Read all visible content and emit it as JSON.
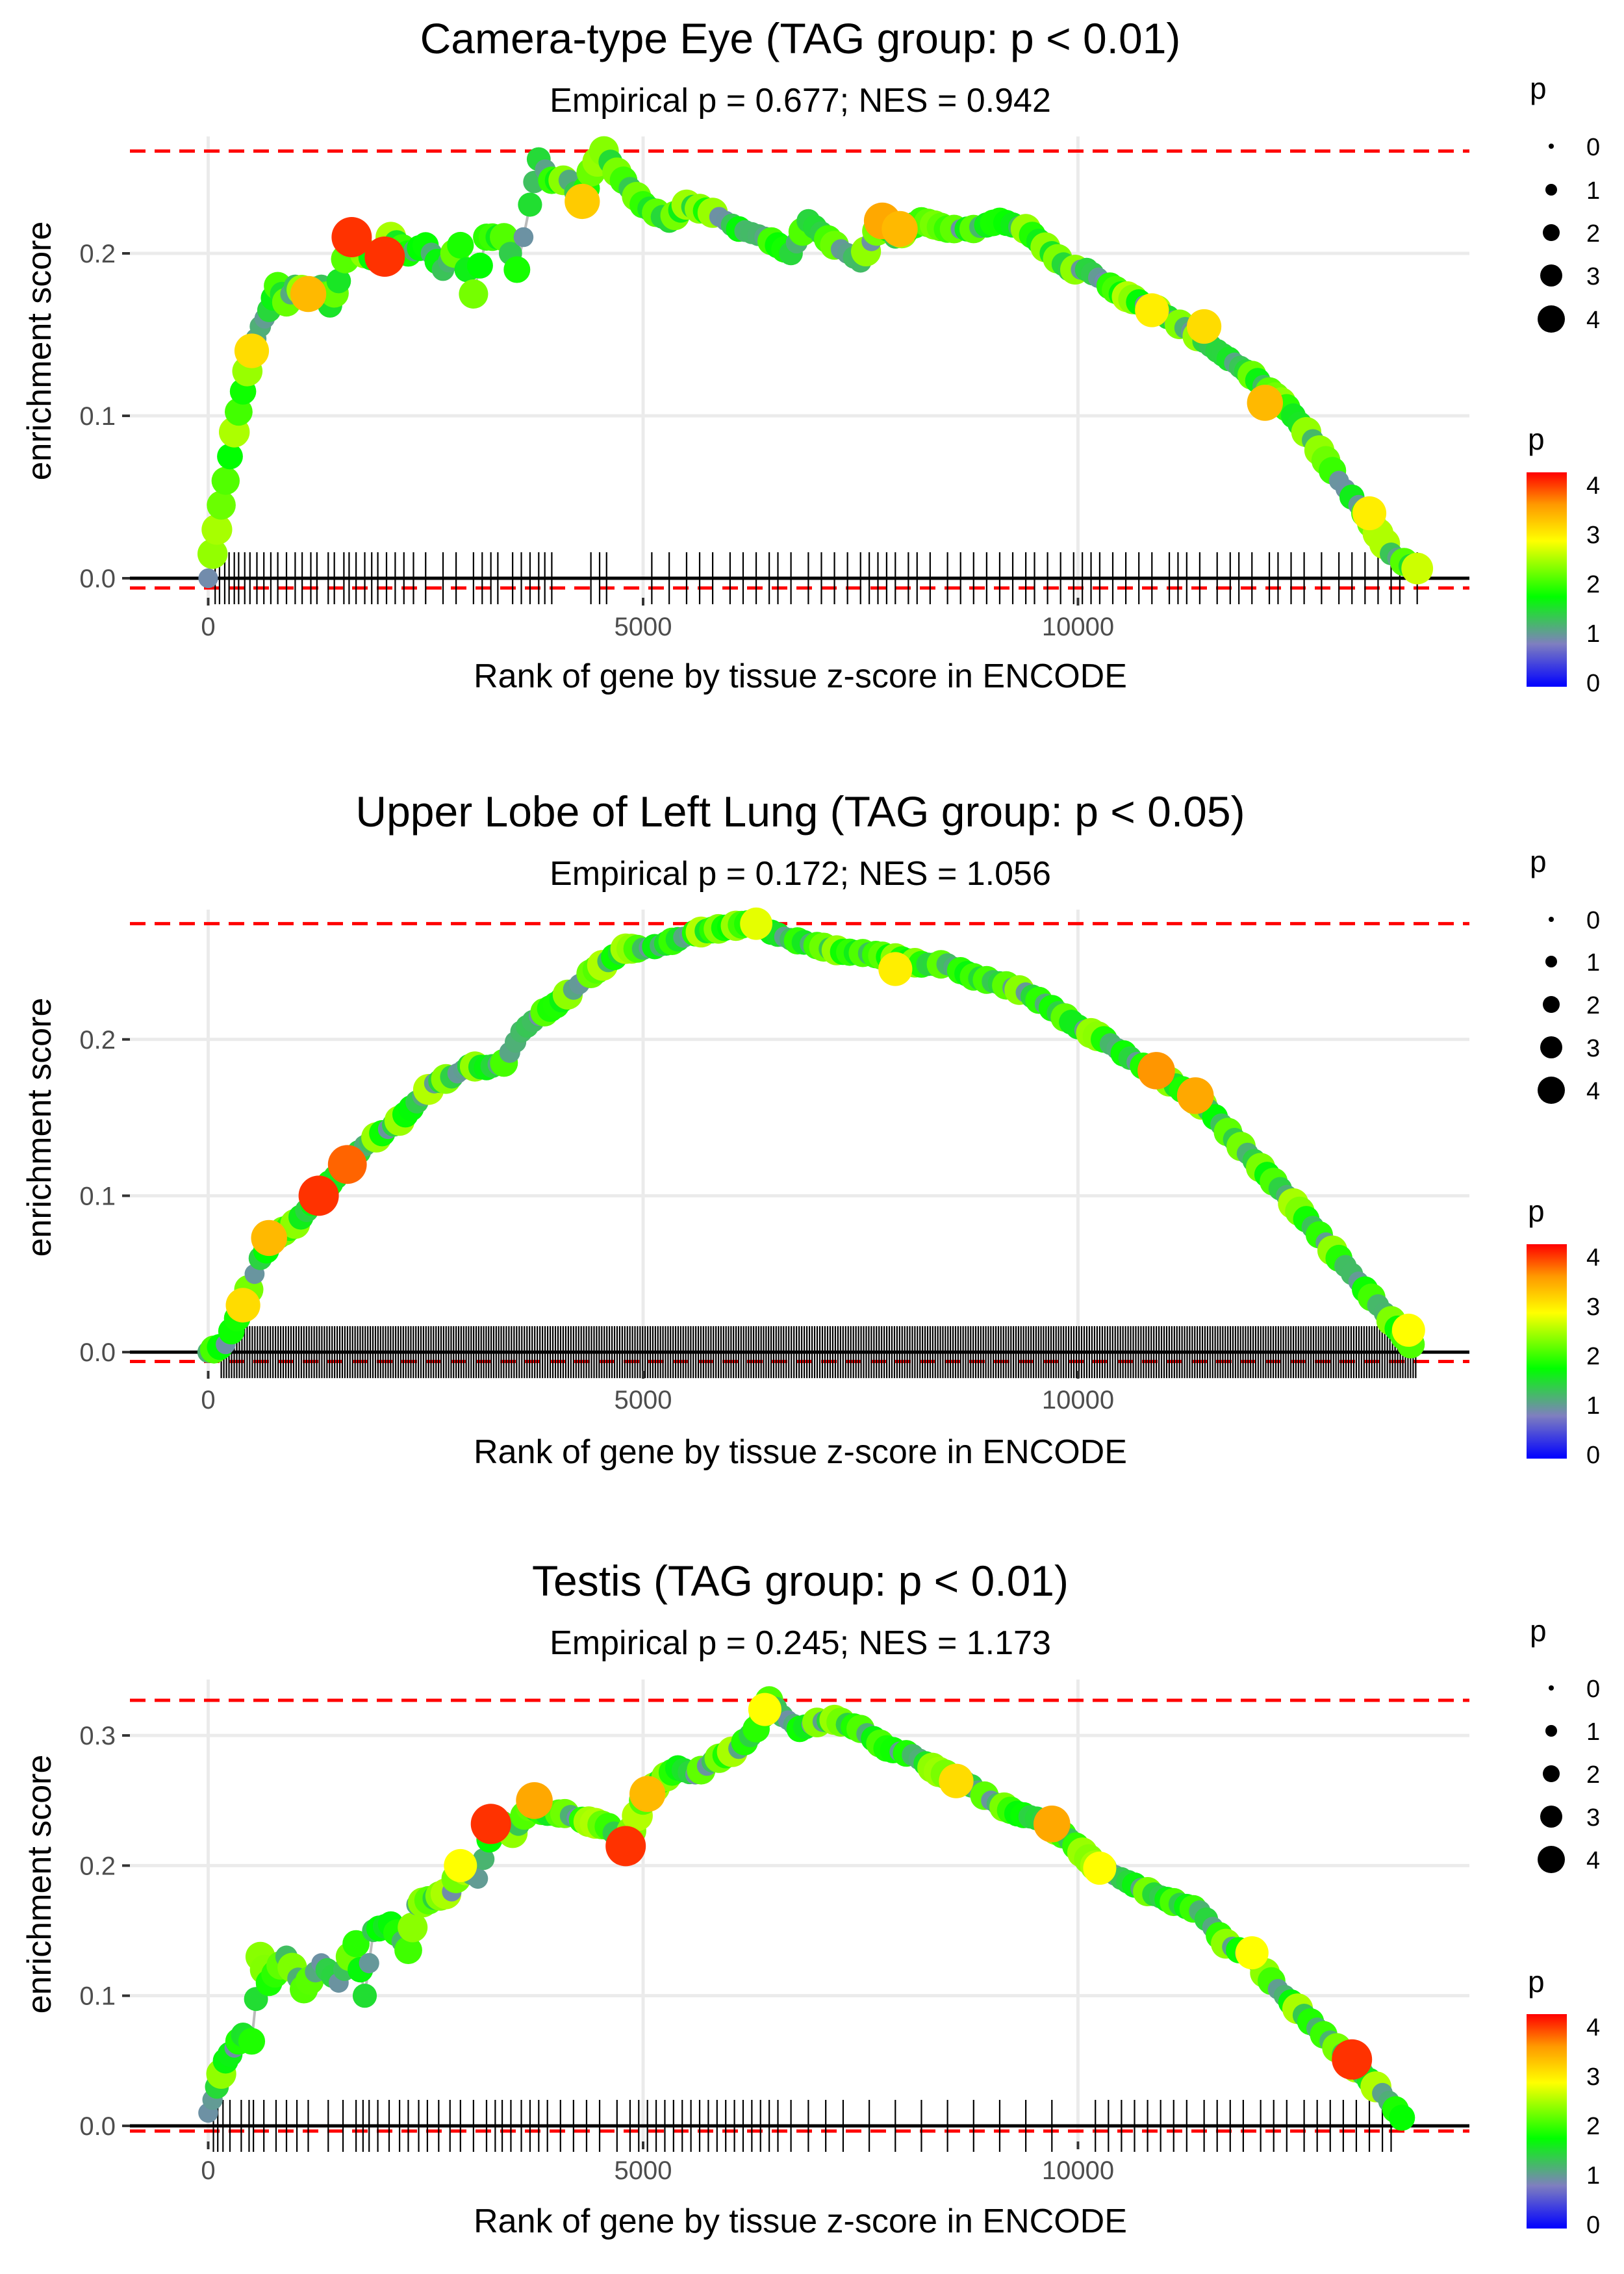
{
  "chart_data": [
    {
      "type": "scatter",
      "title": "Camera-type Eye (TAG group: p < 0.01)",
      "subtitle": "Empirical p = 0.677; NES = 0.942",
      "xlabel": "Rank of gene by tissue z-score in ENCODE",
      "ylabel": "enrichment score",
      "xlim": [
        -900,
        14500
      ],
      "ylim": [
        -0.012,
        0.272
      ],
      "xticks": [
        0,
        5000,
        10000
      ],
      "xtick_labels": [
        "0",
        "5000",
        "10000"
      ],
      "yticks": [
        0.0,
        0.1,
        0.2
      ],
      "ytick_labels": [
        "0.0",
        "0.1",
        "0.2"
      ],
      "max_es": 0.263,
      "min_es": -0.006,
      "curve": [
        [
          0,
          0
        ],
        [
          100,
          0.03
        ],
        [
          200,
          0.06
        ],
        [
          300,
          0.09
        ],
        [
          400,
          0.115
        ],
        [
          500,
          0.14
        ],
        [
          600,
          0.155
        ],
        [
          700,
          0.165
        ],
        [
          800,
          0.18
        ],
        [
          900,
          0.17
        ],
        [
          1000,
          0.18
        ],
        [
          1150,
          0.175
        ],
        [
          1300,
          0.18
        ],
        [
          1400,
          0.168
        ],
        [
          1500,
          0.183
        ],
        [
          1650,
          0.21
        ],
        [
          1800,
          0.2
        ],
        [
          1950,
          0.195
        ],
        [
          2100,
          0.21
        ],
        [
          2300,
          0.2
        ],
        [
          2500,
          0.205
        ],
        [
          2700,
          0.19
        ],
        [
          2900,
          0.205
        ],
        [
          3050,
          0.175
        ],
        [
          3200,
          0.21
        ],
        [
          3400,
          0.21
        ],
        [
          3550,
          0.19
        ],
        [
          3700,
          0.23
        ],
        [
          3800,
          0.258
        ],
        [
          3950,
          0.245
        ],
        [
          4150,
          0.245
        ],
        [
          4300,
          0.23
        ],
        [
          4400,
          0.25
        ],
        [
          4550,
          0.263
        ],
        [
          4700,
          0.25
        ],
        [
          5000,
          0.23
        ],
        [
          5300,
          0.22
        ],
        [
          5500,
          0.23
        ],
        [
          5800,
          0.225
        ],
        [
          6100,
          0.215
        ],
        [
          6400,
          0.21
        ],
        [
          6700,
          0.2
        ],
        [
          6900,
          0.22
        ],
        [
          7200,
          0.205
        ],
        [
          7500,
          0.195
        ],
        [
          7750,
          0.22
        ],
        [
          7900,
          0.21
        ],
        [
          8200,
          0.22
        ],
        [
          8500,
          0.215
        ],
        [
          8800,
          0.215
        ],
        [
          9100,
          0.22
        ],
        [
          9400,
          0.215
        ],
        [
          9700,
          0.2
        ],
        [
          9900,
          0.19
        ],
        [
          10100,
          0.19
        ],
        [
          10500,
          0.175
        ],
        [
          10900,
          0.165
        ],
        [
          11300,
          0.152
        ],
        [
          11600,
          0.14
        ],
        [
          12000,
          0.125
        ],
        [
          12400,
          0.105
        ],
        [
          12700,
          0.085
        ],
        [
          13000,
          0.06
        ],
        [
          13300,
          0.04
        ],
        [
          13600,
          0.015
        ],
        [
          13900,
          0.005
        ]
      ],
      "highlights": [
        {
          "x": 1650,
          "y": 0.21,
          "p": 4.0
        },
        {
          "x": 2030,
          "y": 0.198,
          "p": 4.0
        },
        {
          "x": 1150,
          "y": 0.175,
          "p": 3.4
        },
        {
          "x": 500,
          "y": 0.14,
          "p": 3.2
        },
        {
          "x": 4300,
          "y": 0.232,
          "p": 3.3
        },
        {
          "x": 7750,
          "y": 0.22,
          "p": 3.5
        },
        {
          "x": 7950,
          "y": 0.215,
          "p": 3.4
        },
        {
          "x": 12150,
          "y": 0.108,
          "p": 3.4
        },
        {
          "x": 11450,
          "y": 0.155,
          "p": 3.2
        },
        {
          "x": 10850,
          "y": 0.165,
          "p": 3.1
        },
        {
          "x": 13350,
          "y": 0.04,
          "p": 3.1
        },
        {
          "x": 13900,
          "y": 0.006,
          "p": 2.8
        }
      ],
      "genes": [
        80,
        130,
        190,
        240,
        300,
        350,
        420,
        480,
        560,
        640,
        720,
        800,
        900,
        1000,
        1080,
        1180,
        1250,
        1380,
        1450,
        1560,
        1620,
        1700,
        1800,
        1880,
        1950,
        2050,
        2150,
        2250,
        2360,
        2500,
        2700,
        2850,
        3050,
        3150,
        3250,
        3330,
        3500,
        3600,
        3700,
        3800,
        3870,
        3950,
        4400,
        4500,
        4580,
        5100,
        5300,
        5500,
        5650,
        5800,
        6000,
        6150,
        6300,
        6450,
        6550,
        6700,
        6900,
        7050,
        7200,
        7350,
        7500,
        7600,
        7700,
        7800,
        7900,
        8050,
        8150,
        8300,
        8500,
        8650,
        8800,
        8950,
        9100,
        9250,
        9400,
        9500,
        9650,
        9800,
        9950,
        10050,
        10150,
        10250,
        10400,
        10550,
        10700,
        10850,
        11050,
        11150,
        11250,
        11400,
        11600,
        11750,
        11850,
        12000,
        12200,
        12300,
        12450,
        12600,
        12800,
        13000,
        13150,
        13300,
        13450,
        13600,
        13700,
        13900
      ]
    },
    {
      "type": "scatter",
      "title": "Upper Lobe of Left Lung (TAG group: p < 0.05)",
      "subtitle": "Empirical p = 0.172; NES = 1.056",
      "xlabel": "Rank of gene by tissue z-score in ENCODE",
      "ylabel": "enrichment score",
      "xlim": [
        -900,
        14500
      ],
      "ylim": [
        -0.012,
        0.283
      ],
      "xticks": [
        0,
        5000,
        10000
      ],
      "xtick_labels": [
        "0",
        "5000",
        "10000"
      ],
      "yticks": [
        0.0,
        0.1,
        0.2
      ],
      "ytick_labels": [
        "0.0",
        "0.1",
        "0.2"
      ],
      "max_es": 0.274,
      "min_es": -0.006,
      "curve": [
        [
          0,
          0
        ],
        [
          200,
          0.005
        ],
        [
          400,
          0.03
        ],
        [
          600,
          0.06
        ],
        [
          800,
          0.075
        ],
        [
          1000,
          0.082
        ],
        [
          1200,
          0.095
        ],
        [
          1400,
          0.108
        ],
        [
          1600,
          0.12
        ],
        [
          1800,
          0.132
        ],
        [
          2000,
          0.14
        ],
        [
          2200,
          0.148
        ],
        [
          2400,
          0.16
        ],
        [
          2600,
          0.172
        ],
        [
          2800,
          0.176
        ],
        [
          3000,
          0.183
        ],
        [
          3200,
          0.182
        ],
        [
          3400,
          0.185
        ],
        [
          3600,
          0.205
        ],
        [
          3800,
          0.215
        ],
        [
          4000,
          0.222
        ],
        [
          4200,
          0.232
        ],
        [
          4400,
          0.242
        ],
        [
          4600,
          0.25
        ],
        [
          4800,
          0.258
        ],
        [
          5000,
          0.258
        ],
        [
          5200,
          0.26
        ],
        [
          5400,
          0.264
        ],
        [
          5600,
          0.268
        ],
        [
          5800,
          0.27
        ],
        [
          6000,
          0.272
        ],
        [
          6200,
          0.274
        ],
        [
          6400,
          0.27
        ],
        [
          6700,
          0.264
        ],
        [
          7000,
          0.26
        ],
        [
          7300,
          0.256
        ],
        [
          7600,
          0.255
        ],
        [
          7900,
          0.252
        ],
        [
          8200,
          0.248
        ],
        [
          8500,
          0.248
        ],
        [
          8800,
          0.24
        ],
        [
          9100,
          0.236
        ],
        [
          9400,
          0.23
        ],
        [
          9700,
          0.22
        ],
        [
          10000,
          0.208
        ],
        [
          10300,
          0.2
        ],
        [
          10600,
          0.188
        ],
        [
          10900,
          0.178
        ],
        [
          11200,
          0.168
        ],
        [
          11500,
          0.155
        ],
        [
          11800,
          0.136
        ],
        [
          12100,
          0.118
        ],
        [
          12400,
          0.1
        ],
        [
          12700,
          0.08
        ],
        [
          13000,
          0.06
        ],
        [
          13300,
          0.04
        ],
        [
          13600,
          0.02
        ],
        [
          13900,
          0
        ]
      ],
      "highlights": [
        {
          "x": 1270,
          "y": 0.1,
          "p": 4.0
        },
        {
          "x": 1600,
          "y": 0.12,
          "p": 3.8
        },
        {
          "x": 700,
          "y": 0.073,
          "p": 3.4
        },
        {
          "x": 400,
          "y": 0.03,
          "p": 3.2
        },
        {
          "x": 10900,
          "y": 0.18,
          "p": 3.6
        },
        {
          "x": 11350,
          "y": 0.164,
          "p": 3.5
        },
        {
          "x": 7900,
          "y": 0.245,
          "p": 3.1
        },
        {
          "x": 6300,
          "y": 0.274,
          "p": 2.9
        },
        {
          "x": 13800,
          "y": 0.014,
          "p": 3.0
        }
      ],
      "gene_range": [
        150,
        13900
      ],
      "gene_count": 470
    },
    {
      "type": "scatter",
      "title": "Testis (TAG group: p < 0.01)",
      "subtitle": "Empirical p = 0.245; NES = 1.173",
      "xlabel": "Rank of gene by tissue z-score in ENCODE",
      "ylabel": "enrichment score",
      "xlim": [
        -900,
        14500
      ],
      "ylim": [
        -0.012,
        0.343
      ],
      "xticks": [
        0,
        5000,
        10000
      ],
      "xtick_labels": [
        "0",
        "5000",
        "10000"
      ],
      "yticks": [
        0.0,
        0.1,
        0.2,
        0.3
      ],
      "ytick_labels": [
        "0.0",
        "0.1",
        "0.2",
        "0.3"
      ],
      "max_es": 0.327,
      "min_es": -0.004,
      "curve": [
        [
          0,
          0.01
        ],
        [
          100,
          0.03
        ],
        [
          200,
          0.05
        ],
        [
          300,
          0.06
        ],
        [
          400,
          0.07
        ],
        [
          500,
          0.065
        ],
        [
          600,
          0.13
        ],
        [
          700,
          0.11
        ],
        [
          900,
          0.13
        ],
        [
          1100,
          0.105
        ],
        [
          1300,
          0.125
        ],
        [
          1500,
          0.11
        ],
        [
          1700,
          0.14
        ],
        [
          1800,
          0.1
        ],
        [
          1900,
          0.15
        ],
        [
          2100,
          0.155
        ],
        [
          2300,
          0.135
        ],
        [
          2400,
          0.17
        ],
        [
          2600,
          0.175
        ],
        [
          2800,
          0.18
        ],
        [
          2900,
          0.2
        ],
        [
          3100,
          0.19
        ],
        [
          3300,
          0.235
        ],
        [
          3500,
          0.225
        ],
        [
          3700,
          0.245
        ],
        [
          3900,
          0.24
        ],
        [
          4100,
          0.24
        ],
        [
          4300,
          0.235
        ],
        [
          4600,
          0.23
        ],
        [
          4800,
          0.215
        ],
        [
          5000,
          0.25
        ],
        [
          5200,
          0.265
        ],
        [
          5400,
          0.275
        ],
        [
          5600,
          0.27
        ],
        [
          5800,
          0.28
        ],
        [
          6100,
          0.29
        ],
        [
          6300,
          0.305
        ],
        [
          6450,
          0.327
        ],
        [
          6600,
          0.315
        ],
        [
          6800,
          0.305
        ],
        [
          7000,
          0.31
        ],
        [
          7200,
          0.312
        ],
        [
          7500,
          0.305
        ],
        [
          7800,
          0.29
        ],
        [
          8100,
          0.285
        ],
        [
          8400,
          0.272
        ],
        [
          8700,
          0.265
        ],
        [
          9000,
          0.25
        ],
        [
          9300,
          0.24
        ],
        [
          9600,
          0.235
        ],
        [
          9900,
          0.22
        ],
        [
          10200,
          0.2
        ],
        [
          10500,
          0.19
        ],
        [
          10800,
          0.18
        ],
        [
          11100,
          0.172
        ],
        [
          11400,
          0.165
        ],
        [
          11700,
          0.14
        ],
        [
          12000,
          0.13
        ],
        [
          12300,
          0.105
        ],
        [
          12600,
          0.085
        ],
        [
          12900,
          0.065
        ],
        [
          13200,
          0.045
        ],
        [
          13500,
          0.025
        ],
        [
          13800,
          0
        ]
      ],
      "highlights": [
        {
          "x": 3250,
          "y": 0.232,
          "p": 4.0
        },
        {
          "x": 4800,
          "y": 0.215,
          "p": 4.0
        },
        {
          "x": 13150,
          "y": 0.051,
          "p": 4.0
        },
        {
          "x": 3750,
          "y": 0.25,
          "p": 3.5
        },
        {
          "x": 5050,
          "y": 0.255,
          "p": 3.4
        },
        {
          "x": 9700,
          "y": 0.232,
          "p": 3.5
        },
        {
          "x": 8600,
          "y": 0.265,
          "p": 3.2
        },
        {
          "x": 12000,
          "y": 0.133,
          "p": 3.0
        },
        {
          "x": 10250,
          "y": 0.198,
          "p": 3.0
        },
        {
          "x": 2900,
          "y": 0.2,
          "p": 3.0
        },
        {
          "x": 6400,
          "y": 0.32,
          "p": 3.0
        }
      ],
      "genes": [
        60,
        110,
        170,
        250,
        380,
        470,
        520,
        640,
        780,
        900,
        1020,
        1150,
        1380,
        1550,
        1700,
        1780,
        1850,
        1950,
        2080,
        2200,
        2300,
        2420,
        2520,
        2650,
        2780,
        2900,
        3050,
        3200,
        3300,
        3380,
        3480,
        3600,
        3700,
        3800,
        3900,
        4050,
        4200,
        4350,
        4500,
        4700,
        4850,
        4950,
        5050,
        5150,
        5250,
        5350,
        5450,
        5550,
        5650,
        5750,
        5850,
        5950,
        6050,
        6150,
        6250,
        6350,
        6450,
        6550,
        6700,
        6900,
        7100,
        7300,
        7600,
        7900,
        8200,
        8500,
        8800,
        9100,
        9400,
        9700,
        10200,
        10350,
        10500,
        10650,
        10800,
        10950,
        11100,
        11250,
        11450,
        11600,
        11750,
        11900,
        12100,
        12250,
        12400,
        12600,
        12750,
        12900,
        13050,
        13200,
        13350,
        13500,
        13600
      ]
    }
  ],
  "legend": {
    "size_title": "p",
    "size_labels": [
      "0",
      "1",
      "2",
      "3",
      "4"
    ],
    "color_title": "p",
    "color_labels": [
      "0",
      "1",
      "2",
      "3",
      "4"
    ],
    "color_stops": [
      "#0000ff",
      "#7f7fbf",
      "#00ff00",
      "#ffff00",
      "#ff0000"
    ]
  },
  "colors": {
    "dashed_line": "#ff0000",
    "es_line": "#bbbbbb",
    "grid": "#ebebeb",
    "baseline": "#000000"
  }
}
